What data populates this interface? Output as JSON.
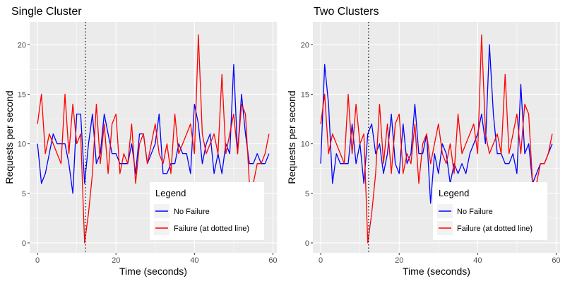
{
  "chart_data": [
    {
      "type": "line",
      "title": "Single Cluster",
      "xlabel": "Time (seconds)",
      "ylabel": "Requests per second",
      "xlim": [
        -2,
        61
      ],
      "ylim": [
        -1,
        22.3
      ],
      "xticks": [
        0,
        20,
        40,
        60
      ],
      "yticks": [
        0,
        5,
        10,
        15,
        20
      ],
      "vline": 12.2,
      "legend": {
        "title": "Legend",
        "placement": "bottom-right",
        "entries": [
          "No Failure",
          "Failure (at dotted line)"
        ]
      },
      "series": [
        {
          "name": "No Failure",
          "color": "#0000ff",
          "x": [
            0,
            1,
            2,
            3,
            4,
            5,
            6,
            7,
            8,
            9,
            10,
            11,
            12,
            13,
            14,
            15,
            16,
            17,
            18,
            19,
            20,
            21,
            22,
            23,
            24,
            25,
            26,
            27,
            28,
            29,
            30,
            31,
            32,
            33,
            34,
            35,
            36,
            37,
            38,
            39,
            40,
            41,
            42,
            43,
            44,
            45,
            46,
            47,
            48,
            49,
            50,
            51,
            52,
            53,
            54,
            55,
            56,
            57,
            58,
            59
          ],
          "y": [
            10,
            6,
            7,
            9,
            11,
            10,
            10,
            10,
            8,
            5,
            13,
            13,
            6,
            10,
            13,
            8,
            9,
            13,
            11,
            9,
            9,
            8,
            8,
            8,
            10,
            7,
            11,
            11,
            8,
            9,
            10,
            13,
            7,
            7,
            8,
            8,
            10,
            9,
            9,
            7,
            14,
            12,
            8,
            10,
            11,
            7,
            9,
            7,
            10,
            9,
            18,
            9,
            15,
            11,
            8,
            8,
            9,
            8,
            8,
            9
          ]
        },
        {
          "name": "Failure (at dotted line)",
          "color": "#ff0000",
          "x": [
            0,
            1,
            2,
            3,
            4,
            5,
            6,
            7,
            8,
            9,
            10,
            11,
            12,
            13,
            14,
            15,
            16,
            17,
            18,
            19,
            20,
            21,
            22,
            23,
            24,
            25,
            26,
            27,
            28,
            29,
            30,
            31,
            32,
            33,
            34,
            35,
            36,
            37,
            38,
            39,
            40,
            41,
            42,
            43,
            44,
            45,
            46,
            47,
            48,
            49,
            50,
            51,
            52,
            53,
            54,
            55,
            56,
            57,
            58,
            59
          ],
          "y": [
            12,
            15,
            9,
            11,
            10,
            9,
            8,
            15,
            9,
            14,
            10,
            11,
            0,
            3,
            7,
            14,
            8,
            12,
            7,
            12,
            13,
            7,
            9,
            8,
            12,
            6,
            10,
            11,
            8,
            10,
            12,
            9,
            8,
            10,
            7,
            13,
            9,
            10,
            11,
            12,
            9,
            21,
            11,
            9,
            10,
            11,
            9,
            17,
            9,
            11,
            13,
            9,
            14,
            13,
            6,
            6,
            8,
            8,
            9,
            11
          ]
        }
      ]
    },
    {
      "type": "line",
      "title": "Two Clusters",
      "xlabel": "Time (seconds)",
      "ylabel": "Requests per second",
      "xlim": [
        -2,
        61
      ],
      "ylim": [
        -1,
        22.3
      ],
      "xticks": [
        0,
        20,
        40,
        60
      ],
      "yticks": [
        0,
        5,
        10,
        15,
        20
      ],
      "vline": 12.2,
      "legend": {
        "title": "Legend",
        "placement": "bottom-right",
        "entries": [
          "No Failure",
          "Failure (at dotted line)"
        ]
      },
      "series": [
        {
          "name": "No Failure",
          "color": "#0000ff",
          "x": [
            0,
            1,
            2,
            3,
            4,
            5,
            6,
            7,
            8,
            9,
            10,
            11,
            12,
            13,
            14,
            15,
            16,
            17,
            18,
            19,
            20,
            21,
            22,
            23,
            24,
            25,
            26,
            27,
            28,
            29,
            30,
            31,
            32,
            33,
            34,
            35,
            36,
            37,
            38,
            39,
            40,
            41,
            42,
            43,
            44,
            45,
            46,
            47,
            48,
            49,
            50,
            51,
            52,
            53,
            54,
            55,
            56,
            57,
            58,
            59
          ],
          "y": [
            8,
            18,
            14,
            6,
            9,
            8,
            8,
            8,
            12,
            8,
            10,
            6,
            11,
            12,
            9,
            10,
            7,
            9,
            13,
            8,
            7,
            12,
            8,
            9,
            14,
            9,
            9,
            11,
            4,
            9,
            7,
            10,
            9,
            6,
            8,
            7,
            8,
            7,
            9,
            10,
            11,
            13,
            10,
            20,
            13,
            9,
            9,
            8,
            8,
            9,
            7,
            16,
            9,
            10,
            6,
            7,
            8,
            8,
            9,
            10
          ]
        },
        {
          "name": "Failure (at dotted line)",
          "color": "#ff0000",
          "x": [
            0,
            1,
            2,
            3,
            4,
            5,
            6,
            7,
            8,
            9,
            10,
            11,
            12,
            13,
            14,
            15,
            16,
            17,
            18,
            19,
            20,
            21,
            22,
            23,
            24,
            25,
            26,
            27,
            28,
            29,
            30,
            31,
            32,
            33,
            34,
            35,
            36,
            37,
            38,
            39,
            40,
            41,
            42,
            43,
            44,
            45,
            46,
            47,
            48,
            49,
            50,
            51,
            52,
            53,
            54,
            55,
            56,
            57,
            58,
            59
          ],
          "y": [
            12,
            15,
            9,
            11,
            10,
            9,
            8,
            15,
            9,
            14,
            10,
            11,
            0,
            3,
            7,
            14,
            8,
            12,
            7,
            12,
            13,
            7,
            9,
            8,
            12,
            6,
            10,
            11,
            8,
            10,
            12,
            9,
            8,
            10,
            7,
            13,
            9,
            10,
            11,
            12,
            9,
            21,
            11,
            9,
            10,
            11,
            9,
            17,
            9,
            11,
            13,
            9,
            14,
            13,
            6,
            6,
            8,
            8,
            9,
            11
          ]
        }
      ]
    }
  ]
}
